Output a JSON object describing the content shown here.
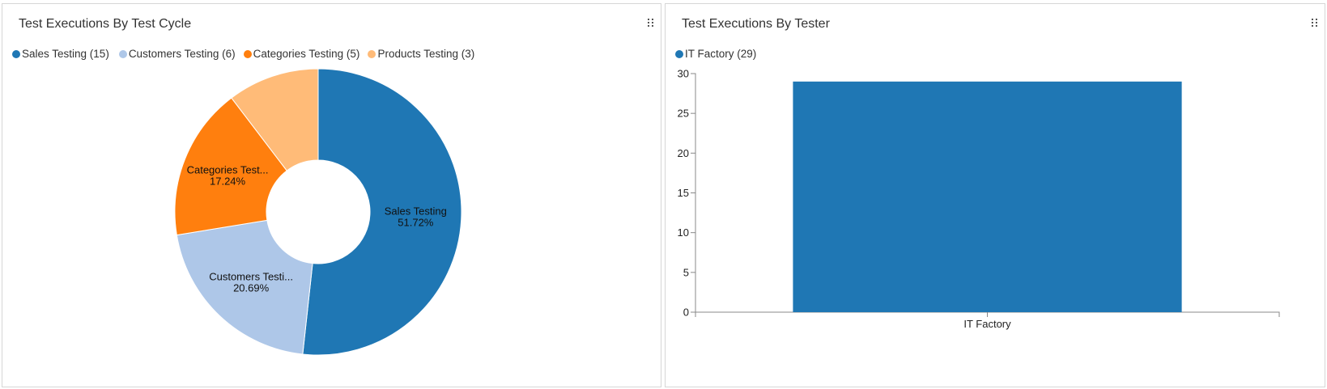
{
  "panels": [
    {
      "title": "Test Executions By Test Cycle",
      "legend": [
        {
          "label": "Sales Testing (15)",
          "color": "#1f77b4"
        },
        {
          "label": "Customers Testing (6)",
          "color": "#aec7e8"
        },
        {
          "label": "Categories Testing (5)",
          "color": "#ff7f0e"
        },
        {
          "label": "Products Testing (3)",
          "color": "#ffbb78"
        }
      ]
    },
    {
      "title": "Test Executions By Tester",
      "legend": [
        {
          "label": "IT Factory (29)",
          "color": "#1f77b4"
        }
      ]
    }
  ],
  "chart_data": [
    {
      "type": "pie",
      "title": "Test Executions By Test Cycle",
      "donut": true,
      "categories": [
        "Sales Testing",
        "Customers Testing",
        "Categories Testing",
        "Products Testing"
      ],
      "values": [
        15,
        6,
        5,
        3
      ],
      "slice_labels": [
        "Sales Testing",
        "Customers Testi...",
        "Categories Test...",
        ""
      ],
      "percent_labels": [
        "51.72%",
        "20.69%",
        "17.24%",
        ""
      ],
      "colors": [
        "#1f77b4",
        "#aec7e8",
        "#ff7f0e",
        "#ffbb78"
      ],
      "legend_position": "top-left"
    },
    {
      "type": "bar",
      "title": "Test Executions By Tester",
      "categories": [
        "IT Factory"
      ],
      "values": [
        29
      ],
      "ylim": [
        0,
        30
      ],
      "yticks": [
        0,
        5,
        10,
        15,
        20,
        25,
        30
      ],
      "color": "#1f77b4",
      "legend_position": "top-left"
    }
  ]
}
